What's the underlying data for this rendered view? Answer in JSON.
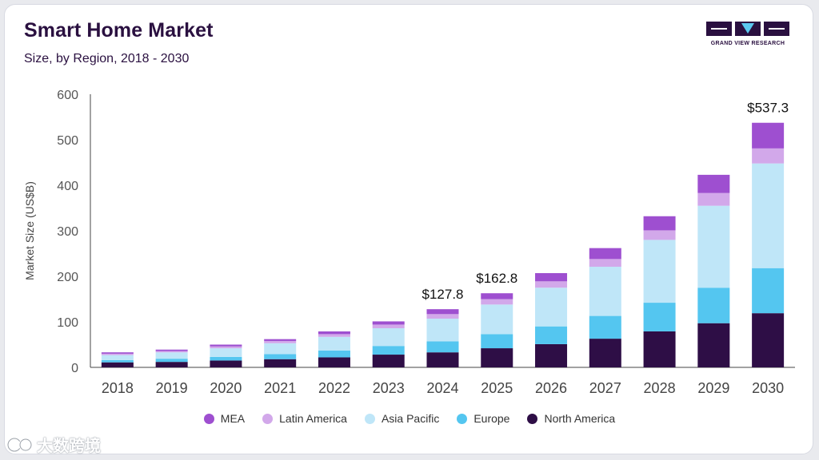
{
  "header": {
    "title": "Smart Home Market",
    "subtitle": "Size, by Region, 2018 - 2030"
  },
  "logo": {
    "text": "GRAND VIEW RESEARCH"
  },
  "watermark": {
    "text": "大数跨境"
  },
  "colors": {
    "MEA": "#9e4fd0",
    "Latin America": "#d2a8ea",
    "Asia Pacific": "#bfe6f8",
    "Europe": "#54c6f0",
    "North America": "#2e0e46",
    "title": "#2a1040"
  },
  "chart_data": {
    "type": "bar",
    "stacked": true,
    "title": "Smart Home Market",
    "subtitle": "Size, by Region, 2018 - 2030",
    "xlabel": "",
    "ylabel": "Market Size (US$B)",
    "ylim": [
      0,
      600
    ],
    "yticks": [
      "0",
      "100",
      "200",
      "300",
      "400",
      "500",
      "600"
    ],
    "categories": [
      "2018",
      "2019",
      "2020",
      "2021",
      "2022",
      "2023",
      "2024",
      "2025",
      "2026",
      "2027",
      "2028",
      "2029",
      "2030"
    ],
    "series": [
      {
        "name": "North America",
        "values": [
          11,
          12,
          15,
          18,
          22,
          28,
          33,
          42,
          51,
          63,
          79,
          97,
          119
        ]
      },
      {
        "name": "Europe",
        "values": [
          5,
          7,
          8,
          11,
          15,
          19,
          24,
          31,
          39,
          50,
          63,
          78,
          99
        ]
      },
      {
        "name": "Asia Pacific",
        "values": [
          11,
          14,
          19,
          24,
          30,
          39,
          50,
          65,
          85,
          108,
          138,
          180,
          230
        ]
      },
      {
        "name": "Latin America",
        "values": [
          3,
          3,
          4,
          5,
          6,
          8,
          10,
          12,
          14,
          17,
          21,
          28,
          33
        ]
      },
      {
        "name": "MEA",
        "values": [
          3,
          3,
          4,
          4,
          6,
          7,
          10.8,
          12.8,
          18,
          24,
          31,
          40,
          56.3
        ]
      }
    ],
    "annotations": [
      {
        "category": "2024",
        "label": "$127.8"
      },
      {
        "category": "2025",
        "label": "$162.8"
      },
      {
        "category": "2030",
        "label": "$537.3"
      }
    ],
    "legend": [
      "MEA",
      "Latin America",
      "Asia Pacific",
      "Europe",
      "North America"
    ],
    "legend_position": "bottom",
    "grid": false
  }
}
